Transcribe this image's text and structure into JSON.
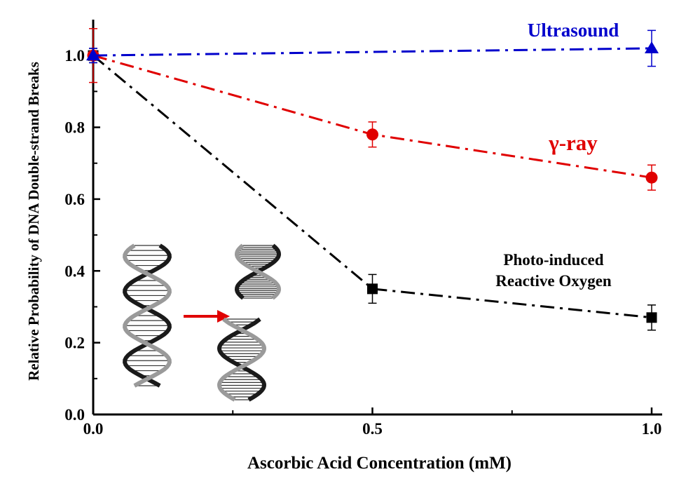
{
  "chart_data": {
    "type": "line",
    "title": "",
    "xlabel": "Ascorbic Acid Concentration (mM)",
    "ylabel": "Relative Probability of DNA Double-strand Breaks",
    "xlim": [
      0,
      1
    ],
    "ylim": [
      0,
      1.1
    ],
    "x_ticks": [
      {
        "value": 0,
        "label": "0.0"
      },
      {
        "value": 0.5,
        "label": "0.5"
      },
      {
        "value": 1,
        "label": "1.0"
      }
    ],
    "y_ticks": [
      {
        "value": 0,
        "label": "0.0"
      },
      {
        "value": 0.2,
        "label": "0.2"
      },
      {
        "value": 0.4,
        "label": "0.4"
      },
      {
        "value": 0.6,
        "label": "0.6"
      },
      {
        "value": 0.8,
        "label": "0.8"
      },
      {
        "value": 1.0,
        "label": "1.0"
      }
    ],
    "grid": false,
    "series": [
      {
        "name": "Ultrasound",
        "color": "#0000cc",
        "marker": "triangle",
        "x": [
          0,
          1
        ],
        "y": [
          1.0,
          1.02
        ],
        "error": [
          0.02,
          0.05
        ]
      },
      {
        "name": "γ-ray",
        "color": "#e00000",
        "marker": "circle",
        "x": [
          0,
          0.5,
          1
        ],
        "y": [
          1.0,
          0.78,
          0.66
        ],
        "error": [
          0.075,
          0.035,
          0.035
        ]
      },
      {
        "name": "Photo-induced\nReactive Oxygen",
        "label_lines": [
          "Photo-induced",
          "Reactive Oxygen"
        ],
        "color": "#000000",
        "marker": "square",
        "x": [
          0,
          0.5,
          1
        ],
        "y": [
          1.0,
          0.35,
          0.27
        ],
        "error": [
          0.02,
          0.04,
          0.035
        ]
      }
    ],
    "annotations": [
      {
        "type": "illustration",
        "icon": "dna-double-helix-break-icon",
        "description_icon": "intact-dna-helix-icon",
        "arrow_color": "#e00000"
      }
    ]
  }
}
